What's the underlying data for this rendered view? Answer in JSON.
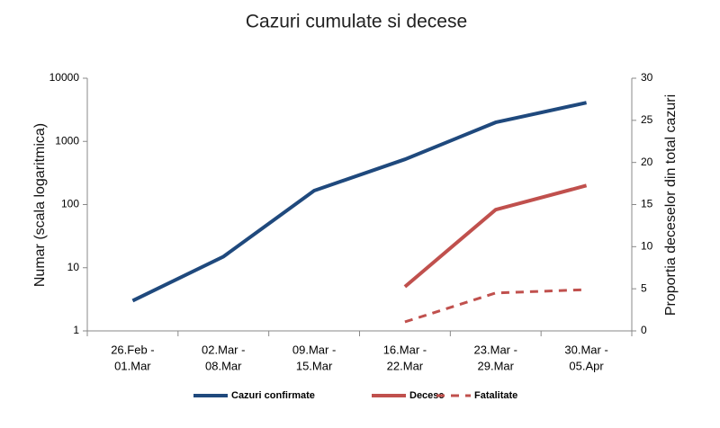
{
  "chart_data": {
    "type": "line",
    "title": "Cazuri cumulate si decese",
    "y_label": "Numar (scala logaritmica)",
    "y2_label": "Proportia deceselor din total cazuri",
    "categories": [
      [
        "26.Feb -",
        "01.Mar"
      ],
      [
        "02.Mar -",
        "08.Mar"
      ],
      [
        "09.Mar -",
        "15.Mar"
      ],
      [
        "16.Mar -",
        "22.Mar"
      ],
      [
        "23.Mar -",
        "29.Mar"
      ],
      [
        "30.Mar -",
        "05.Apr"
      ]
    ],
    "yscale": "log",
    "ylim": [
      1,
      10000
    ],
    "yticks": [
      1,
      10,
      100,
      1000,
      10000
    ],
    "y2lim": [
      0,
      30
    ],
    "y2ticks": [
      0,
      5,
      10,
      15,
      20,
      25,
      30
    ],
    "legend": "bottom",
    "series": [
      {
        "name": "Cazuri confirmate",
        "color": "#1f497d",
        "dash": "solid",
        "values": [
          3,
          15,
          166,
          520,
          2000,
          4100
        ]
      },
      {
        "name": "Decese",
        "color": "#c0504d",
        "dash": "solid",
        "values": [
          null,
          null,
          null,
          5,
          83,
          200
        ]
      },
      {
        "name": "Fatalitate",
        "color": "#c0504d",
        "dash": "dashed",
        "axis": "y2",
        "values": [
          null,
          null,
          null,
          1.07,
          4.5,
          4.9
        ]
      }
    ]
  }
}
